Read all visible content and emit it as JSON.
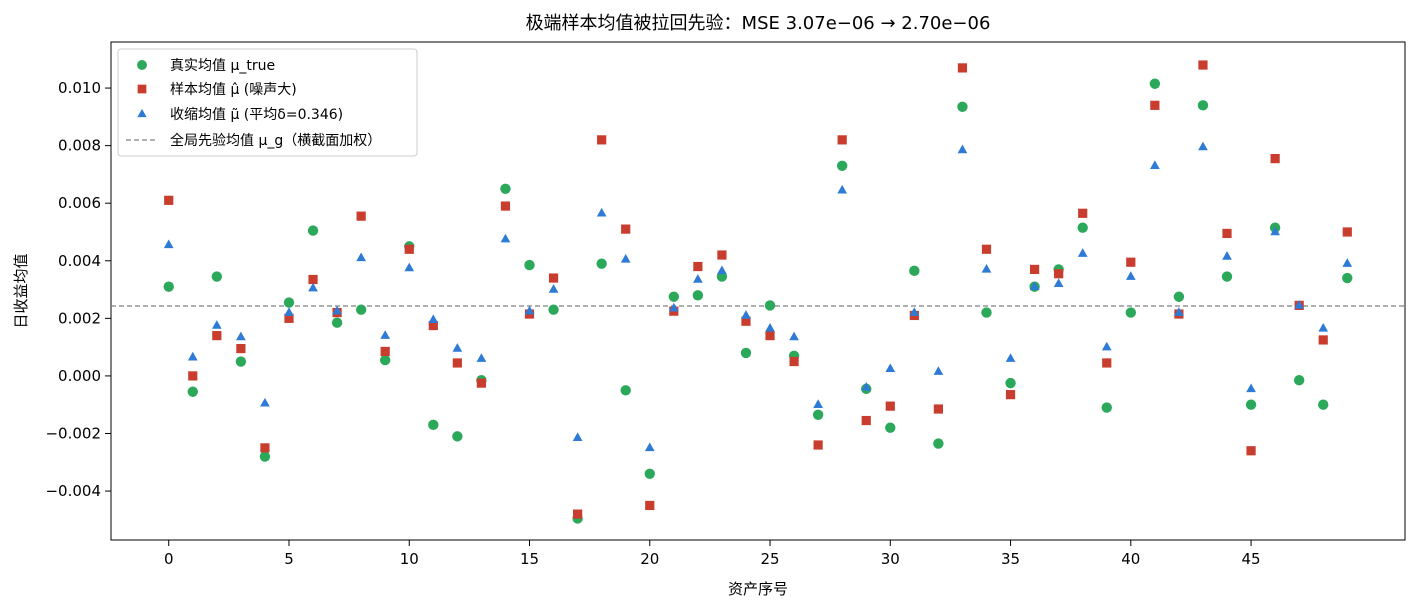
{
  "chart_data": {
    "type": "scatter",
    "title": "极端样本均值被拉回先验：MSE 3.07e−06 → 2.70e−06",
    "xlabel": "资产序号",
    "ylabel": "日收益均值",
    "xlim": [
      -2.4,
      51.4
    ],
    "ylim": [
      -0.0057,
      0.0116
    ],
    "xticks": [
      0,
      5,
      10,
      15,
      20,
      25,
      30,
      35,
      40,
      45
    ],
    "xtick_labels": [
      "0",
      "5",
      "10",
      "15",
      "20",
      "25",
      "30",
      "35",
      "40",
      "45"
    ],
    "yticks": [
      -0.004,
      -0.002,
      0.0,
      0.002,
      0.004,
      0.006,
      0.008,
      0.01
    ],
    "ytick_labels": [
      "−0.004",
      "−0.002",
      "0.000",
      "0.002",
      "0.004",
      "0.006",
      "0.008",
      "0.010"
    ],
    "grid": false,
    "legend_position": "top-left",
    "x": [
      0,
      1,
      2,
      3,
      4,
      5,
      6,
      7,
      8,
      9,
      10,
      11,
      12,
      13,
      14,
      15,
      16,
      17,
      18,
      19,
      20,
      21,
      22,
      23,
      24,
      25,
      26,
      27,
      28,
      29,
      30,
      31,
      32,
      33,
      34,
      35,
      36,
      37,
      38,
      39,
      40,
      41,
      42,
      43,
      44,
      45,
      46,
      47,
      48,
      49
    ],
    "series": [
      {
        "name": "真实均值 μ_true",
        "marker": "circle",
        "color": "#2ca85a",
        "values": [
          0.0031,
          -0.00055,
          0.00345,
          0.0005,
          -0.0028,
          0.00255,
          0.00505,
          0.00185,
          0.0023,
          0.00055,
          0.0045,
          -0.0017,
          -0.0021,
          -0.00015,
          0.0065,
          0.00385,
          0.0023,
          -0.00495,
          0.0039,
          -0.0005,
          -0.0034,
          0.00275,
          0.0028,
          0.00345,
          0.0008,
          0.00245,
          0.0007,
          -0.00135,
          0.0073,
          -0.00045,
          -0.0018,
          0.00365,
          -0.00235,
          0.00935,
          0.0022,
          -0.00025,
          0.0031,
          0.0037,
          0.00515,
          -0.0011,
          0.0022,
          0.01015,
          0.00275,
          0.0094,
          0.00345,
          -0.001,
          0.00515,
          -0.00015,
          -0.001,
          0.0034
        ]
      },
      {
        "name": "样本均值 μ̂ (噪声大)",
        "marker": "square",
        "color": "#c93d2e",
        "values": [
          0.0061,
          0.0,
          0.0014,
          0.00095,
          -0.0025,
          0.002,
          0.00335,
          0.0022,
          0.00555,
          0.00085,
          0.0044,
          0.00175,
          0.00045,
          -0.00025,
          0.0059,
          0.00215,
          0.0034,
          -0.0048,
          0.0082,
          0.0051,
          -0.0045,
          0.00225,
          0.0038,
          0.0042,
          0.0019,
          0.0014,
          0.0005,
          -0.0024,
          0.0082,
          -0.00155,
          -0.00105,
          0.0021,
          -0.00115,
          0.0107,
          0.0044,
          -0.00065,
          0.0037,
          0.00355,
          0.00565,
          0.00045,
          0.00395,
          0.0094,
          0.00215,
          0.0108,
          0.00495,
          -0.0026,
          0.00755,
          0.00245,
          0.00125,
          0.005
        ]
      },
      {
        "name": "收缩均值 μ̃ (平均δ=0.346)",
        "marker": "triangle",
        "color": "#2e7bd6",
        "values": [
          0.00455,
          0.00065,
          0.00175,
          0.00135,
          -0.00095,
          0.0022,
          0.00305,
          0.00225,
          0.0041,
          0.0014,
          0.00375,
          0.00195,
          0.00095,
          0.0006,
          0.00475,
          0.00225,
          0.003,
          -0.00215,
          0.00565,
          0.00405,
          -0.0025,
          0.00235,
          0.00335,
          0.00365,
          0.0021,
          0.00165,
          0.00135,
          -0.001,
          0.00645,
          -0.0004,
          0.00025,
          0.0022,
          0.00015,
          0.00785,
          0.0037,
          0.0006,
          0.0031,
          0.0032,
          0.00425,
          0.001,
          0.00345,
          0.0073,
          0.0022,
          0.00795,
          0.00415,
          -0.00045,
          0.005,
          0.00245,
          0.00165,
          0.0039
        ]
      }
    ],
    "reference_line": {
      "name": "全局先验均值 μ_g（横截面加权）",
      "y": 0.00243,
      "style": "dashed",
      "color": "#808080"
    }
  }
}
